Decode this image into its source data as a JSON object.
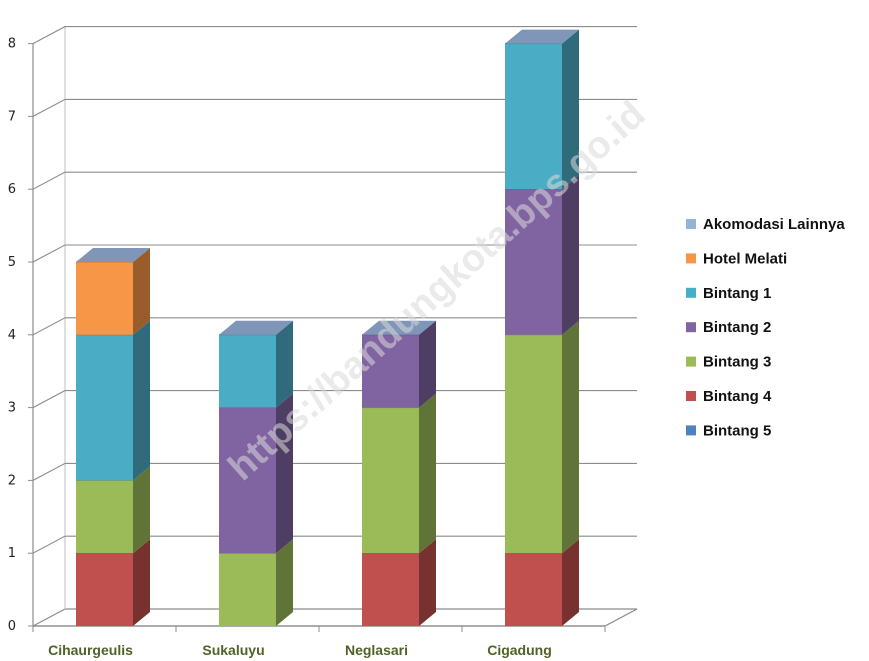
{
  "watermark": "https://bandungkota.bps.go.id",
  "chart_data": {
    "type": "bar",
    "stacked": true,
    "three_d": true,
    "categories": [
      "Cihaurgeulis",
      "Sukaluyu",
      "Neglasari",
      "Cigadung"
    ],
    "series": [
      {
        "name": "Bintang 5",
        "color": "#4f81bd",
        "values": [
          0,
          0,
          0,
          0
        ]
      },
      {
        "name": "Bintang 4",
        "color": "#c0504d",
        "values": [
          1,
          0,
          1,
          1
        ]
      },
      {
        "name": "Bintang 3",
        "color": "#9bbb59",
        "values": [
          1,
          1,
          2,
          3
        ]
      },
      {
        "name": "Bintang 2",
        "color": "#8064a2",
        "values": [
          0,
          2,
          1,
          2
        ]
      },
      {
        "name": "Bintang 1",
        "color": "#4bacc6",
        "values": [
          2,
          1,
          0,
          2
        ]
      },
      {
        "name": "Hotel Melati",
        "color": "#f79646",
        "values": [
          1,
          0,
          0,
          0
        ]
      },
      {
        "name": "Akomodasi Lainnya",
        "color": "#95b3d7",
        "values": [
          0,
          0,
          0,
          0
        ]
      }
    ],
    "legend_order": [
      "Akomodasi Lainnya",
      "Hotel Melati",
      "Bintang 1",
      "Bintang 2",
      "Bintang 3",
      "Bintang 4",
      "Bintang 5"
    ],
    "y_ticks": [
      "0",
      "1",
      "2",
      "3",
      "4",
      "5",
      "6",
      "7",
      "8"
    ],
    "ylim": [
      0,
      8
    ],
    "grid": true,
    "legend_position": "right"
  }
}
